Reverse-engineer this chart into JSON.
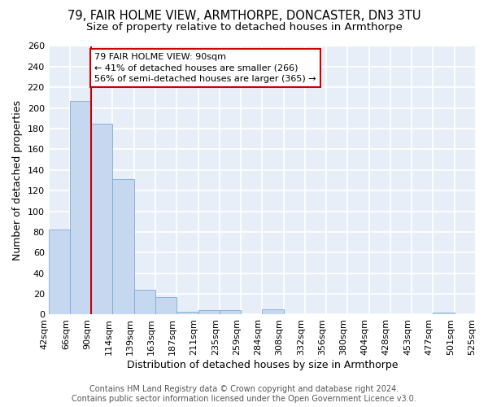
{
  "title1": "79, FAIR HOLME VIEW, ARMTHORPE, DONCASTER, DN3 3TU",
  "title2": "Size of property relative to detached houses in Armthorpe",
  "xlabel": "Distribution of detached houses by size in Armthorpe",
  "ylabel": "Number of detached properties",
  "footer1": "Contains HM Land Registry data © Crown copyright and database right 2024.",
  "footer2": "Contains public sector information licensed under the Open Government Licence v3.0.",
  "bin_labels": [
    "42sqm",
    "66sqm",
    "90sqm",
    "114sqm",
    "139sqm",
    "163sqm",
    "187sqm",
    "211sqm",
    "235sqm",
    "259sqm",
    "284sqm",
    "308sqm",
    "332sqm",
    "356sqm",
    "380sqm",
    "404sqm",
    "428sqm",
    "453sqm",
    "477sqm",
    "501sqm",
    "525sqm"
  ],
  "bar_values": [
    82,
    207,
    185,
    131,
    24,
    17,
    3,
    4,
    4,
    0,
    5,
    0,
    0,
    0,
    0,
    0,
    0,
    0,
    2,
    0
  ],
  "bar_color": "#c5d8f0",
  "bar_edge_color": "#7aadd4",
  "vline_x": 2,
  "vline_color": "#cc0000",
  "annotation_text": "79 FAIR HOLME VIEW: 90sqm\n← 41% of detached houses are smaller (266)\n56% of semi-detached houses are larger (365) →",
  "ylim": [
    0,
    260
  ],
  "yticks": [
    0,
    20,
    40,
    60,
    80,
    100,
    120,
    140,
    160,
    180,
    200,
    220,
    240,
    260
  ],
  "bg_color": "#e8eef8",
  "grid_color": "#ffffff",
  "title1_fontsize": 10.5,
  "title2_fontsize": 9.5,
  "axis_label_fontsize": 9,
  "tick_fontsize": 8,
  "footer_fontsize": 7
}
